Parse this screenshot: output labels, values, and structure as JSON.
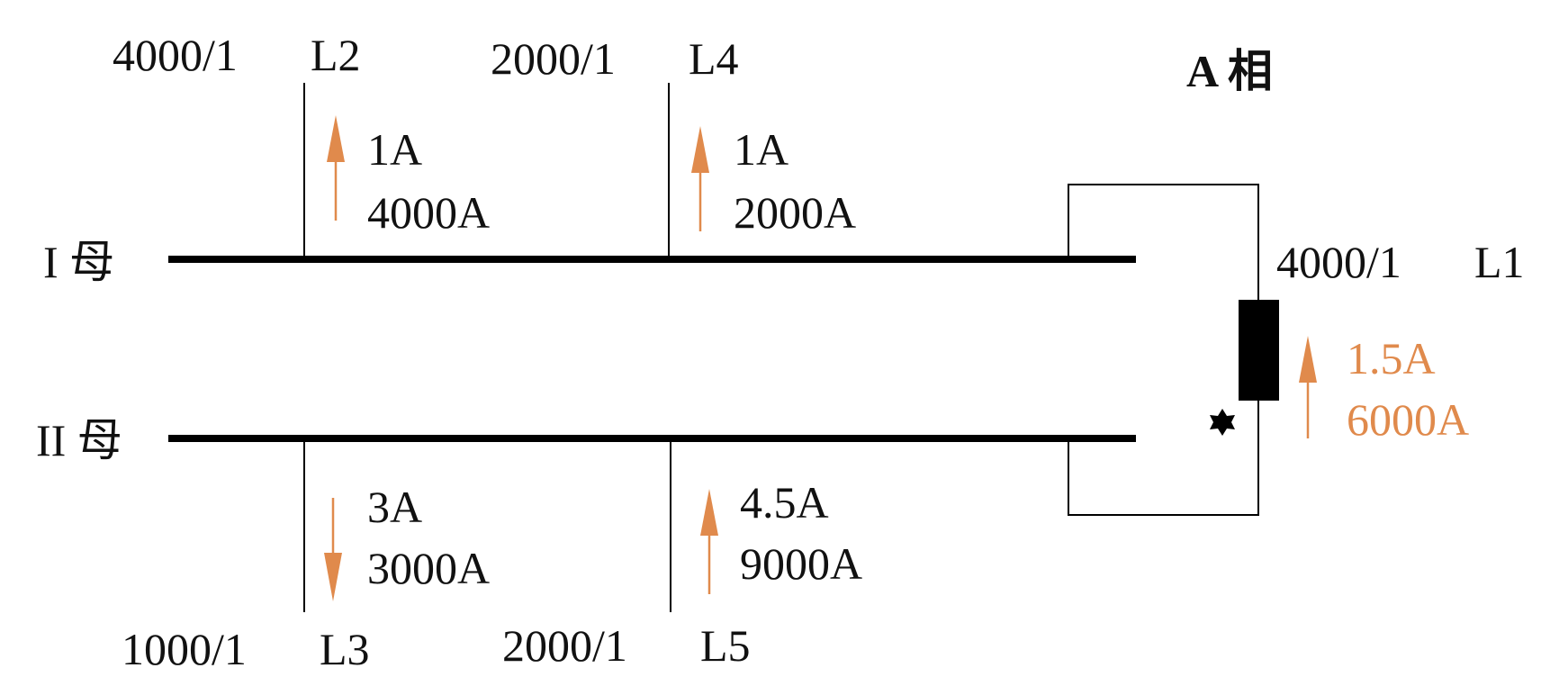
{
  "phase_label": "A 相",
  "buses": {
    "bus1_label": "I 母",
    "bus2_label": "II 母"
  },
  "feeders": {
    "L2": {
      "ct_ratio": "4000/1",
      "name": "L2",
      "secondary": "1A",
      "primary": "4000A",
      "direction": "up"
    },
    "L4": {
      "ct_ratio": "2000/1",
      "name": "L4",
      "secondary": "1A",
      "primary": "2000A",
      "direction": "up"
    },
    "L3": {
      "ct_ratio": "1000/1",
      "name": "L3",
      "secondary": "3A",
      "primary": "3000A",
      "direction": "down"
    },
    "L5": {
      "ct_ratio": "2000/1",
      "name": "L5",
      "secondary": "4.5A",
      "primary": "9000A",
      "direction": "up"
    },
    "L1": {
      "ct_ratio": "4000/1",
      "name": "L1",
      "secondary": "1.5A",
      "primary": "6000A",
      "direction": "up"
    }
  },
  "colors": {
    "line": "#000000",
    "text": "#111111",
    "arrow": "#E08A4C",
    "highlight_text": "#E08A4C"
  },
  "icons": {
    "fault_point": "star-icon"
  }
}
